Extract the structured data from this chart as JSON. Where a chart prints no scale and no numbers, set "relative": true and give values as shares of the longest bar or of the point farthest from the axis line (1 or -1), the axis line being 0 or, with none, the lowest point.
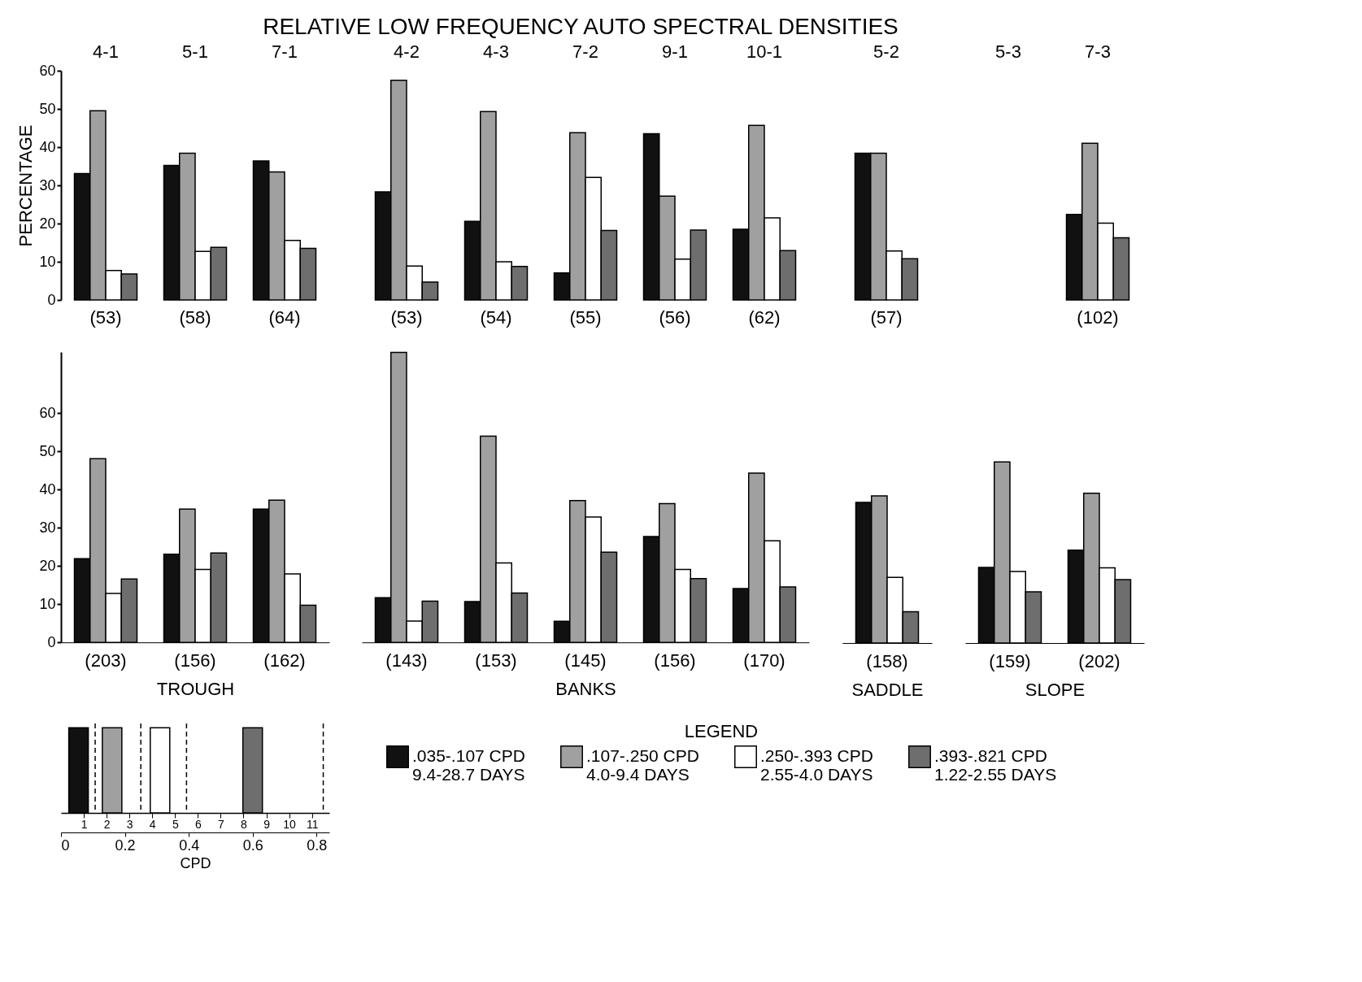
{
  "chart_data": [
    {
      "type": "bar",
      "title": "RELATIVE  LOW  FREQUENCY  AUTO  SPECTRAL  DENSITIES",
      "ylabel": "PERCENTAGE",
      "legend": "right",
      "legend_title": "LEGEND",
      "categories": [
        "4-1",
        "5-1",
        "7-1"
      ],
      "ylim": [
        0,
        60
      ],
      "yticks": [
        0,
        10,
        20,
        30,
        40,
        50,
        60
      ],
      "series": [
        {
          "name": ".035-.107 CPD\n9.4-28.7 DAYS",
          "color": "#111111",
          "values": [
            33.1,
            35.2,
            36.4
          ]
        },
        {
          "name": ".107-.250 CPD\n4.0-9.4 DAYS",
          "color": "#a0a0a0",
          "values": [
            49.5,
            38.4,
            33.5
          ]
        },
        {
          "name": ".250-.393 CPD\n2.55-4.0 DAYS",
          "color": "#ffffff",
          "values": [
            7.7,
            12.7,
            15.6
          ]
        },
        {
          "name": ".393-.821 CPD\n1.22-2.55 DAYS",
          "color": "#6e6e6e",
          "values": [
            6.8,
            13.8,
            13.5
          ]
        }
      ],
      "annotations": [
        "(53)",
        "(58)",
        "(64)"
      ]
    },
    {
      "type": "bar",
      "categories": [
        "4-2",
        "4-3",
        "7-2",
        "9-1",
        "10-1"
      ],
      "ylim": [
        0,
        60
      ],
      "yticks": [
        0,
        10,
        20,
        30,
        40,
        50,
        60
      ],
      "tick_labels": "x",
      "series": [
        {
          "color": "#111111",
          "values": [
            28.3,
            20.6,
            7.1,
            43.5,
            18.5
          ]
        },
        {
          "color": "#a0a0a0",
          "values": [
            57.5,
            49.3,
            43.8,
            27.2,
            45.7
          ]
        },
        {
          "color": "#ffffff",
          "values": [
            8.9,
            10.0,
            32.1,
            10.7,
            21.5
          ]
        },
        {
          "color": "#6e6e6e",
          "values": [
            4.7,
            8.8,
            18.2,
            18.3,
            12.9
          ]
        }
      ],
      "annotations": [
        "(53)",
        "(54)",
        "(55)",
        "(56)",
        "(62)"
      ]
    },
    {
      "type": "bar",
      "categories": [
        "5-2"
      ],
      "ylim": [
        0,
        60
      ],
      "yticks": [
        0,
        10,
        20,
        30,
        40,
        50,
        60
      ],
      "tick_labels": "x",
      "series": [
        {
          "color": "#111111",
          "values": [
            38.4
          ]
        },
        {
          "color": "#a0a0a0",
          "values": [
            38.4
          ]
        },
        {
          "color": "#ffffff",
          "values": [
            12.8
          ]
        },
        {
          "color": "#6e6e6e",
          "values": [
            10.8
          ]
        }
      ],
      "annotations": [
        "(57)"
      ]
    },
    {
      "type": "bar",
      "categories": [
        "5-3",
        "7-3"
      ],
      "ylim": [
        0,
        60
      ],
      "yticks": [
        0,
        10,
        20,
        30,
        40,
        50,
        60
      ],
      "tick_labels": "x",
      "series": [
        {
          "color": "#111111",
          "values": [
            null,
            22.4
          ]
        },
        {
          "color": "#a0a0a0",
          "values": [
            null,
            41.0
          ]
        },
        {
          "color": "#ffffff",
          "values": [
            null,
            20.1
          ]
        },
        {
          "color": "#6e6e6e",
          "values": [
            null,
            16.3
          ]
        }
      ],
      "annotations": [
        "(102)"
      ]
    },
    {
      "type": "bar",
      "xlabel": "TROUGH",
      "categories": [
        "(203)",
        "(156)",
        "(162)"
      ],
      "ylim": [
        0,
        76
      ],
      "yticks": [
        0,
        10,
        20,
        30,
        40,
        50,
        60
      ],
      "series": [
        {
          "color": "#111111",
          "values": [
            21.9,
            23.1,
            34.9
          ]
        },
        {
          "color": "#a0a0a0",
          "values": [
            48.1,
            34.9,
            37.2
          ]
        },
        {
          "color": "#ffffff",
          "values": [
            12.8,
            19.1,
            17.9
          ]
        },
        {
          "color": "#6e6e6e",
          "values": [
            16.6,
            23.4,
            9.7
          ]
        }
      ]
    },
    {
      "type": "bar",
      "xlabel": "BANKS",
      "categories": [
        "(143)",
        "(153)",
        "(145)",
        "(156)",
        "(170)"
      ],
      "ylim": [
        0,
        76
      ],
      "yticks": [
        0,
        10,
        20,
        30,
        40,
        50,
        60
      ],
      "tick_labels": "x",
      "series": [
        {
          "color": "#111111",
          "values": [
            11.7,
            10.7,
            5.5,
            27.7,
            14.1
          ]
        },
        {
          "color": "#a0a0a0",
          "values": [
            75.9,
            54.0,
            37.1,
            36.3,
            44.3
          ]
        },
        {
          "color": "#ffffff",
          "values": [
            5.6,
            20.8,
            32.8,
            19.1,
            26.6
          ]
        },
        {
          "color": "#6e6e6e",
          "values": [
            10.8,
            12.9,
            23.6,
            16.7,
            14.5
          ]
        }
      ]
    },
    {
      "type": "bar",
      "xlabel": "SADDLE",
      "categories": [
        "(158)"
      ],
      "ylim": [
        0,
        60
      ],
      "yticks": [
        0,
        10,
        20,
        30,
        40,
        50,
        60
      ],
      "tick_labels": "x",
      "series": [
        {
          "color": "#111111",
          "values": [
            36.8
          ]
        },
        {
          "color": "#a0a0a0",
          "values": [
            38.5
          ]
        },
        {
          "color": "#ffffff",
          "values": [
            17.2
          ]
        },
        {
          "color": "#6e6e6e",
          "values": [
            8.2
          ]
        }
      ]
    },
    {
      "type": "bar",
      "xlabel": "SLOPE",
      "categories": [
        "(159)",
        "(202)"
      ],
      "ylim": [
        0,
        60
      ],
      "yticks": [
        0,
        10,
        20,
        30,
        40,
        50,
        60
      ],
      "tick_labels": "x",
      "series": [
        {
          "color": "#111111",
          "values": [
            19.8,
            24.3
          ]
        },
        {
          "color": "#a0a0a0",
          "values": [
            47.4,
            39.2
          ]
        },
        {
          "color": "#ffffff",
          "values": [
            18.7,
            19.7
          ]
        },
        {
          "color": "#6e6e6e",
          "values": [
            13.4,
            16.6
          ]
        }
      ]
    },
    {
      "type": "bar",
      "relative": true,
      "xlabel": "CPD",
      "xlim": [
        0,
        0.84
      ],
      "xticks": [
        0,
        0.2,
        0.4,
        0.6,
        0.8
      ],
      "tick_labels": "x",
      "x2lim": [
        0,
        11.76
      ],
      "x2ticks": [
        1,
        2,
        3,
        4,
        5,
        6,
        7,
        8,
        9,
        10,
        11
      ],
      "x": [
        0.055,
        0.16,
        0.31,
        0.6
      ],
      "values": [
        1,
        1,
        1,
        1
      ],
      "colors": [
        "#111111",
        "#a0a0a0",
        "#ffffff",
        "#6e6e6e"
      ],
      "ref_lines": [
        {
          "axis": "x",
          "value": 0.107,
          "line_style": "dashed"
        },
        {
          "axis": "x",
          "value": 0.25,
          "line_style": "dashed"
        },
        {
          "axis": "x",
          "value": 0.393,
          "line_style": "dashed"
        },
        {
          "axis": "x",
          "value": 0.821,
          "line_style": "dashed"
        }
      ]
    }
  ]
}
